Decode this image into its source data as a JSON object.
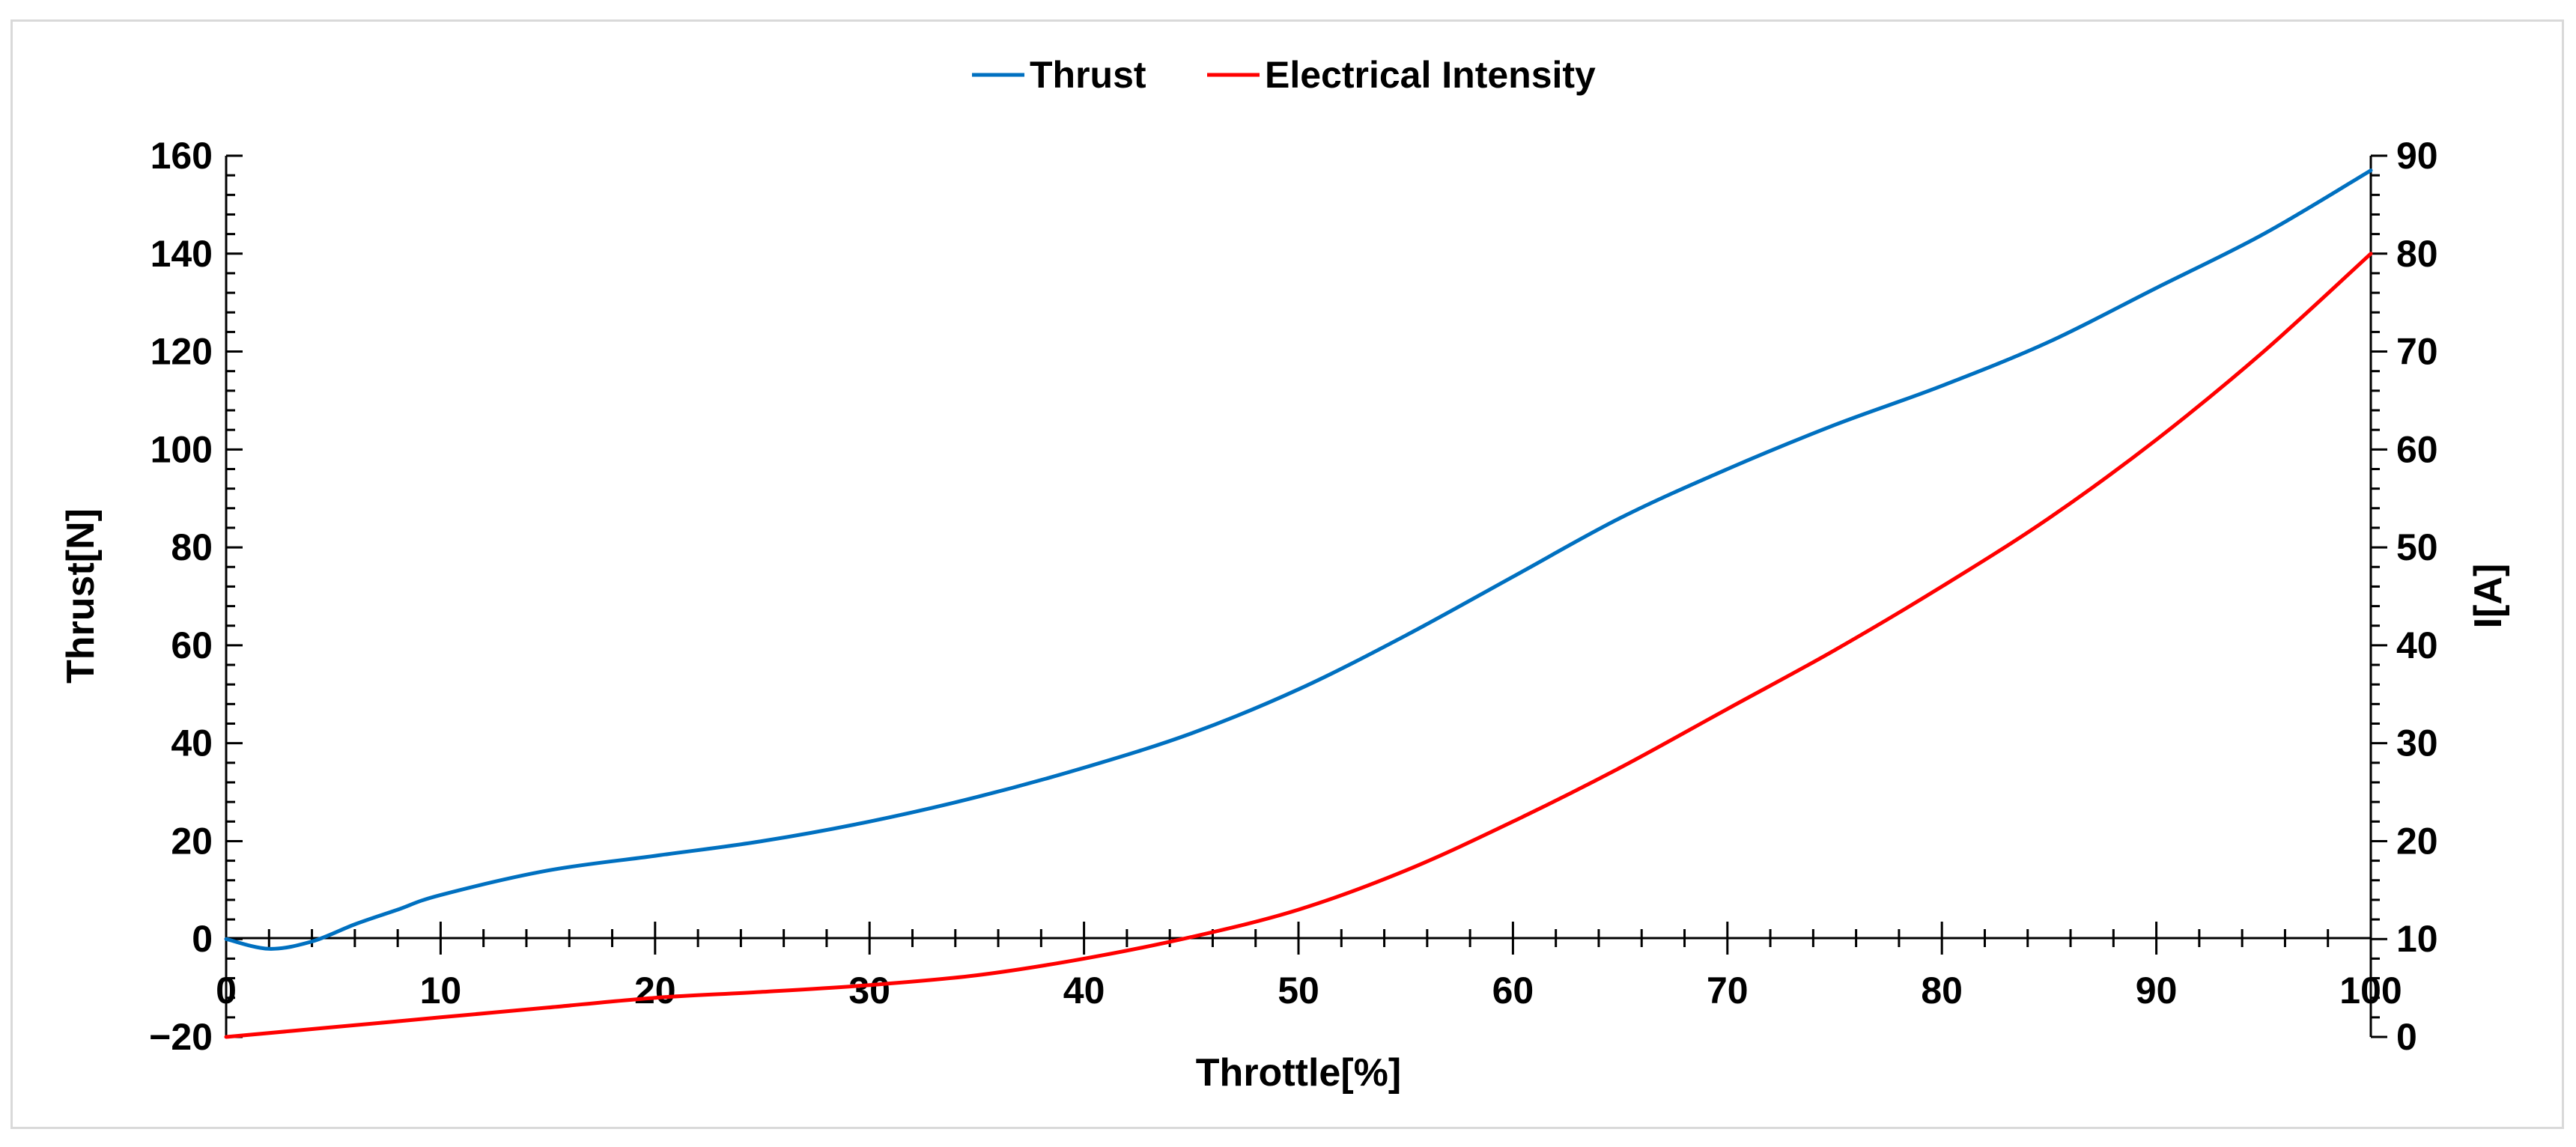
{
  "chart_data": {
    "type": "line",
    "title": "",
    "xlabel": "Throttle[%]",
    "ylabel": "Thrust[N]",
    "y2label": "I[A]",
    "xlim": [
      0,
      100
    ],
    "ylim": [
      -20,
      160
    ],
    "y2lim": [
      0,
      90
    ],
    "x_ticks": [
      0,
      10,
      20,
      30,
      40,
      50,
      60,
      70,
      80,
      90,
      100
    ],
    "x_tick_labels": [
      "0",
      "10",
      "20",
      "30",
      "40",
      "50",
      "60",
      "70",
      "80",
      "90",
      "100"
    ],
    "y_ticks": [
      -20,
      0,
      20,
      40,
      60,
      80,
      100,
      120,
      140,
      160
    ],
    "y_tick_labels": [
      "−20",
      "0",
      "20",
      "40",
      "60",
      "80",
      "100",
      "120",
      "140",
      "160"
    ],
    "y2_ticks": [
      0,
      10,
      20,
      30,
      40,
      50,
      60,
      70,
      80,
      90
    ],
    "y2_tick_labels": [
      "0",
      "10",
      "20",
      "30",
      "40",
      "50",
      "60",
      "70",
      "80",
      "90"
    ],
    "grid": false,
    "legend_position": "top-center",
    "series": [
      {
        "name": "Thrust",
        "axis": "left",
        "color": "#0070C0",
        "x": [
          0,
          2,
          4,
          6,
          8,
          10,
          15,
          20,
          25,
          30,
          35,
          40,
          45,
          50,
          55,
          60,
          65,
          70,
          75,
          80,
          85,
          90,
          95,
          100
        ],
        "y": [
          0,
          -2,
          -0.5,
          3,
          6,
          9,
          14,
          17,
          20,
          24,
          29,
          35,
          42,
          51,
          62,
          74,
          86,
          96,
          105,
          113,
          122,
          133,
          144,
          157
        ]
      },
      {
        "name": "Electrical Intensity",
        "axis": "right",
        "color": "#FF0000",
        "x": [
          0,
          5,
          10,
          15,
          20,
          25,
          30,
          35,
          40,
          45,
          50,
          55,
          60,
          65,
          70,
          75,
          80,
          85,
          90,
          95,
          100
        ],
        "y": [
          0,
          1,
          2,
          3,
          4,
          4.6,
          5.3,
          6.3,
          8,
          10.2,
          13,
          17,
          22,
          27.5,
          33.5,
          39.5,
          46,
          53,
          61,
          70,
          80
        ]
      }
    ]
  }
}
